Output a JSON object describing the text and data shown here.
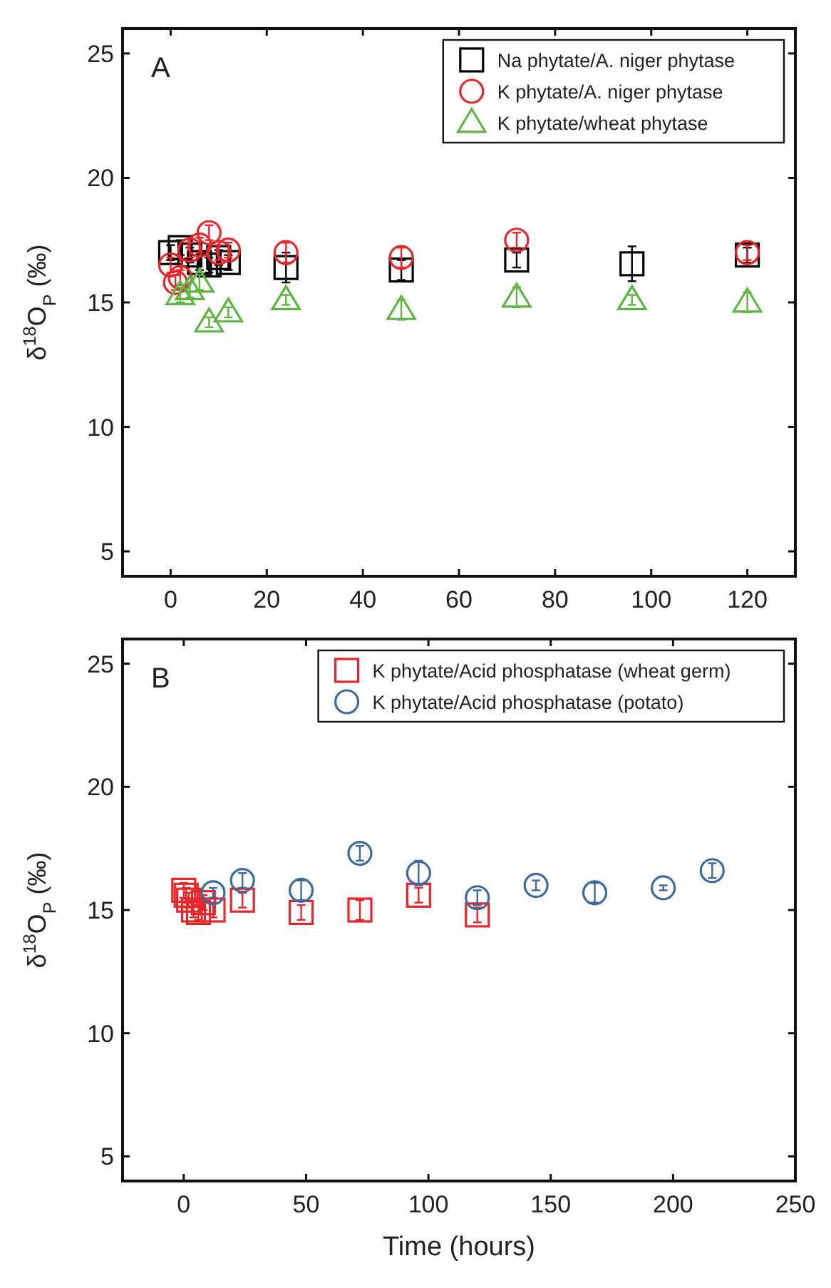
{
  "chart_data": [
    {
      "type": "scatter",
      "ylabel": "δ$^{18}$O$_{P}$ (‰)",
      "annotations": [
        "A"
      ],
      "xlim": [
        -10,
        130
      ],
      "xticks": [
        0,
        20,
        40,
        60,
        80,
        100,
        120
      ],
      "ylim": [
        4,
        26
      ],
      "yticks": [
        5,
        10,
        15,
        20,
        25
      ],
      "grid": false,
      "legend": "top right",
      "series": [
        {
          "name": "Na phytate/A. niger phytase",
          "color": "#000000",
          "marker": "square",
          "x": [
            0,
            2,
            4,
            6,
            8,
            10,
            12,
            24,
            48,
            72,
            96,
            120
          ],
          "values": [
            17.0,
            17.2,
            16.9,
            16.6,
            16.5,
            16.8,
            16.6,
            16.4,
            16.3,
            16.7,
            16.55,
            16.9
          ],
          "errors": [
            0.3,
            0.3,
            0.3,
            0.3,
            0.3,
            0.3,
            0.3,
            0.6,
            0.4,
            0.3,
            0.7,
            0.3
          ]
        },
        {
          "name": "K phytate/A. niger phytase",
          "color": "#e8262a",
          "marker": "circle",
          "x": [
            0,
            1,
            2,
            4,
            6,
            8,
            10,
            12,
            24,
            48,
            72,
            120
          ],
          "values": [
            16.5,
            15.8,
            16.0,
            17.1,
            17.3,
            17.8,
            17.0,
            17.1,
            17.0,
            16.8,
            17.5,
            17.0
          ],
          "errors": [
            0.3,
            0.3,
            0.3,
            0.3,
            0.3,
            0.3,
            0.3,
            0.3,
            0.4,
            0.4,
            0.3,
            0.3
          ]
        },
        {
          "name": "K phytate/wheat phytase",
          "color": "#5fb444",
          "marker": "triangle",
          "x": [
            2,
            4,
            6,
            8,
            12,
            24,
            48,
            72,
            96,
            120
          ],
          "values": [
            15.3,
            15.5,
            15.8,
            14.2,
            14.6,
            15.1,
            14.7,
            15.2,
            15.1,
            15.0
          ],
          "errors": [
            0.3,
            0.3,
            0.3,
            0.2,
            0.2,
            0.2,
            0.4,
            0.4,
            0.2,
            0.4
          ]
        }
      ]
    },
    {
      "type": "scatter",
      "xlabel": "Time (hours)",
      "ylabel": "δ$^{18}$O$_{P}$ (‰)",
      "annotations": [
        "B"
      ],
      "xlim": [
        -25,
        250
      ],
      "xticks": [
        0,
        50,
        100,
        150,
        200,
        250
      ],
      "ylim": [
        4,
        26
      ],
      "yticks": [
        5,
        10,
        15,
        20,
        25
      ],
      "grid": false,
      "legend": "top right",
      "series": [
        {
          "name": "K phytate/Acid phosphatase (wheat germ)",
          "color": "#e8262a",
          "marker": "square",
          "x": [
            0,
            1,
            2,
            4,
            6,
            8,
            12,
            24,
            48,
            72,
            96,
            120
          ],
          "values": [
            15.8,
            15.6,
            15.4,
            15.0,
            14.9,
            15.3,
            15.0,
            15.4,
            14.9,
            15.0,
            15.6,
            14.8
          ],
          "errors": [
            0.3,
            0.3,
            0.3,
            0.3,
            0.3,
            0.3,
            0.3,
            0.3,
            0.3,
            0.4,
            0.3,
            0.3
          ]
        },
        {
          "name": "K phytate/Acid phosphatase (potato)",
          "color": "#3e6a9e",
          "marker": "circle",
          "x": [
            12,
            24,
            48,
            72,
            96,
            120,
            144,
            168,
            196,
            216
          ],
          "values": [
            15.7,
            16.2,
            15.8,
            17.3,
            16.5,
            15.5,
            16.0,
            15.7,
            15.9,
            16.6
          ],
          "errors": [
            0.2,
            0.3,
            0.4,
            0.3,
            0.5,
            0.3,
            0.2,
            0.4,
            0.1,
            0.3
          ]
        }
      ]
    }
  ]
}
